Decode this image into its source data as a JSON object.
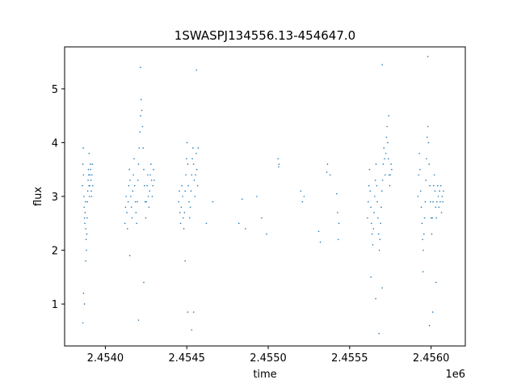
{
  "chart_data": {
    "type": "scatter",
    "title": "1SWASPJ134556.13-454647.0",
    "xlabel": "time",
    "ylabel": "flux",
    "x_offset_label": "1e6",
    "xlim": [
      2453750,
      2456210
    ],
    "ylim": [
      0.22,
      5.78
    ],
    "xticks": [
      2454000,
      2454500,
      2455000,
      2455500,
      2456000
    ],
    "xtick_labels": [
      "2.4540",
      "2.4545",
      "2.4550",
      "2.4555",
      "2.4560"
    ],
    "yticks": [
      1,
      2,
      3,
      4,
      5
    ],
    "ytick_labels": [
      "1",
      "2",
      "3",
      "4",
      "5"
    ],
    "grid": false,
    "marker_color": "#1f77b4",
    "series": [
      {
        "points": [
          [
            2453860,
            3.2
          ],
          [
            2453862,
            3.6
          ],
          [
            2453864,
            3.9
          ],
          [
            2453866,
            3.4
          ],
          [
            2453868,
            3.0
          ],
          [
            2453870,
            2.8
          ],
          [
            2453872,
            2.6
          ],
          [
            2453874,
            2.5
          ],
          [
            2453876,
            2.7
          ],
          [
            2453878,
            2.9
          ],
          [
            2453880,
            2.4
          ],
          [
            2453882,
            2.2
          ],
          [
            2453884,
            2.0
          ],
          [
            2453886,
            2.3
          ],
          [
            2453888,
            2.6
          ],
          [
            2453890,
            2.9
          ],
          [
            2453892,
            3.1
          ],
          [
            2453894,
            3.3
          ],
          [
            2453896,
            3.5
          ],
          [
            2453898,
            3.4
          ],
          [
            2453900,
            3.2
          ],
          [
            2453902,
            3.0
          ],
          [
            2453904,
            3.2
          ],
          [
            2453906,
            3.4
          ],
          [
            2453908,
            3.6
          ],
          [
            2453910,
            3.5
          ],
          [
            2453912,
            3.3
          ],
          [
            2453914,
            3.1
          ],
          [
            2453916,
            3.0
          ],
          [
            2453918,
            3.4
          ],
          [
            2453920,
            3.6
          ],
          [
            2453922,
            3.2
          ],
          [
            2453866,
            1.2
          ],
          [
            2453872,
            1.0
          ],
          [
            2453862,
            0.65
          ],
          [
            2453880,
            1.8
          ],
          [
            2453900,
            3.8
          ],
          [
            2454120,
            2.5
          ],
          [
            2454124,
            2.8
          ],
          [
            2454128,
            3.0
          ],
          [
            2454132,
            2.7
          ],
          [
            2454136,
            2.4
          ],
          [
            2454140,
            2.9
          ],
          [
            2454144,
            3.2
          ],
          [
            2454148,
            3.5
          ],
          [
            2454152,
            3.3
          ],
          [
            2454156,
            3.0
          ],
          [
            2454160,
            2.8
          ],
          [
            2454164,
            2.6
          ],
          [
            2454168,
            3.1
          ],
          [
            2454172,
            3.4
          ],
          [
            2454176,
            3.7
          ],
          [
            2454180,
            3.2
          ],
          [
            2454184,
            2.9
          ],
          [
            2454188,
            2.7
          ],
          [
            2454192,
            2.5
          ],
          [
            2454196,
            2.9
          ],
          [
            2454200,
            3.3
          ],
          [
            2454204,
            3.6
          ],
          [
            2454208,
            3.9
          ],
          [
            2454212,
            4.2
          ],
          [
            2454216,
            4.5
          ],
          [
            2454220,
            4.8
          ],
          [
            2454224,
            4.6
          ],
          [
            2454228,
            4.3
          ],
          [
            2454232,
            3.9
          ],
          [
            2454236,
            3.5
          ],
          [
            2454240,
            3.2
          ],
          [
            2454244,
            2.9
          ],
          [
            2454248,
            2.6
          ],
          [
            2454252,
            2.9
          ],
          [
            2454256,
            3.2
          ],
          [
            2454260,
            3.4
          ],
          [
            2454264,
            3.0
          ],
          [
            2454268,
            2.8
          ],
          [
            2454272,
            3.1
          ],
          [
            2454276,
            3.4
          ],
          [
            2454280,
            3.6
          ],
          [
            2454284,
            3.3
          ],
          [
            2454288,
            3.0
          ],
          [
            2454292,
            3.2
          ],
          [
            2454296,
            3.5
          ],
          [
            2454300,
            3.3
          ],
          [
            2454216,
            5.4
          ],
          [
            2454204,
            0.7
          ],
          [
            2454150,
            1.9
          ],
          [
            2454236,
            1.4
          ],
          [
            2454450,
            2.9
          ],
          [
            2454454,
            3.1
          ],
          [
            2454458,
            2.7
          ],
          [
            2454462,
            2.5
          ],
          [
            2454466,
            2.8
          ],
          [
            2454470,
            3.2
          ],
          [
            2454474,
            3.0
          ],
          [
            2454478,
            2.6
          ],
          [
            2454482,
            2.4
          ],
          [
            2454486,
            2.7
          ],
          [
            2454490,
            3.1
          ],
          [
            2454494,
            3.4
          ],
          [
            2454498,
            3.7
          ],
          [
            2454502,
            4.0
          ],
          [
            2454506,
            3.6
          ],
          [
            2454510,
            3.2
          ],
          [
            2454514,
            2.9
          ],
          [
            2454518,
            2.6
          ],
          [
            2454522,
            2.8
          ],
          [
            2454526,
            3.1
          ],
          [
            2454530,
            3.4
          ],
          [
            2454534,
            3.7
          ],
          [
            2454538,
            3.9
          ],
          [
            2454542,
            3.6
          ],
          [
            2454546,
            3.3
          ],
          [
            2454550,
            3.0
          ],
          [
            2454554,
            3.4
          ],
          [
            2454558,
            3.8
          ],
          [
            2454562,
            3.5
          ],
          [
            2454566,
            3.2
          ],
          [
            2454570,
            3.9
          ],
          [
            2454490,
            1.8
          ],
          [
            2454506,
            0.85
          ],
          [
            2454542,
            0.85
          ],
          [
            2454530,
            0.52
          ],
          [
            2454560,
            5.35
          ],
          [
            2454620,
            2.5
          ],
          [
            2454660,
            2.9
          ],
          [
            2454820,
            2.5
          ],
          [
            2454840,
            2.95
          ],
          [
            2454860,
            2.4
          ],
          [
            2454930,
            3.0
          ],
          [
            2454960,
            2.6
          ],
          [
            2454990,
            2.3
          ],
          [
            2455060,
            3.7
          ],
          [
            2455064,
            3.55
          ],
          [
            2455066,
            3.6
          ],
          [
            2455200,
            3.1
          ],
          [
            2455210,
            2.9
          ],
          [
            2455220,
            3.0
          ],
          [
            2455360,
            3.45
          ],
          [
            2455364,
            3.6
          ],
          [
            2455380,
            3.4
          ],
          [
            2455420,
            3.05
          ],
          [
            2455426,
            2.7
          ],
          [
            2455430,
            2.2
          ],
          [
            2455434,
            2.5
          ],
          [
            2455310,
            2.35
          ],
          [
            2455320,
            2.15
          ],
          [
            2455610,
            2.6
          ],
          [
            2455614,
            2.9
          ],
          [
            2455618,
            3.2
          ],
          [
            2455622,
            3.5
          ],
          [
            2455626,
            3.1
          ],
          [
            2455630,
            2.8
          ],
          [
            2455634,
            2.5
          ],
          [
            2455638,
            2.3
          ],
          [
            2455642,
            2.1
          ],
          [
            2455646,
            2.4
          ],
          [
            2455650,
            2.7
          ],
          [
            2455654,
            3.0
          ],
          [
            2455658,
            3.3
          ],
          [
            2455662,
            3.6
          ],
          [
            2455666,
            3.2
          ],
          [
            2455670,
            2.9
          ],
          [
            2455674,
            2.6
          ],
          [
            2455678,
            2.3
          ],
          [
            2455682,
            2.0
          ],
          [
            2455686,
            2.2
          ],
          [
            2455690,
            2.5
          ],
          [
            2455694,
            2.8
          ],
          [
            2455698,
            3.1
          ],
          [
            2455702,
            3.3
          ],
          [
            2455706,
            3.6
          ],
          [
            2455710,
            3.9
          ],
          [
            2455714,
            3.7
          ],
          [
            2455718,
            3.4
          ],
          [
            2455722,
            3.8
          ],
          [
            2455726,
            4.1
          ],
          [
            2455730,
            4.3
          ],
          [
            2455734,
            4.0
          ],
          [
            2455738,
            3.7
          ],
          [
            2455742,
            3.4
          ],
          [
            2455746,
            3.2
          ],
          [
            2455750,
            3.4
          ],
          [
            2455754,
            3.6
          ],
          [
            2455758,
            3.5
          ],
          [
            2455660,
            1.1
          ],
          [
            2455680,
            0.45
          ],
          [
            2455700,
            5.45
          ],
          [
            2455740,
            4.5
          ],
          [
            2455630,
            1.5
          ],
          [
            2455700,
            1.3
          ],
          [
            2455920,
            3.0
          ],
          [
            2455924,
            3.4
          ],
          [
            2455928,
            3.8
          ],
          [
            2455932,
            3.5
          ],
          [
            2455936,
            3.1
          ],
          [
            2455940,
            2.8
          ],
          [
            2455944,
            2.5
          ],
          [
            2455948,
            2.2
          ],
          [
            2455952,
            2.0
          ],
          [
            2455956,
            2.3
          ],
          [
            2455960,
            2.6
          ],
          [
            2455964,
            2.9
          ],
          [
            2455968,
            3.3
          ],
          [
            2455972,
            3.7
          ],
          [
            2455976,
            4.1
          ],
          [
            2455980,
            4.3
          ],
          [
            2455984,
            4.0
          ],
          [
            2455988,
            3.6
          ],
          [
            2455992,
            3.2
          ],
          [
            2455996,
            2.9
          ],
          [
            2456000,
            2.6
          ],
          [
            2456004,
            2.3
          ],
          [
            2456008,
            2.6
          ],
          [
            2456012,
            2.9
          ],
          [
            2456016,
            3.2
          ],
          [
            2456020,
            3.4
          ],
          [
            2456024,
            3.1
          ],
          [
            2456028,
            2.8
          ],
          [
            2456032,
            2.6
          ],
          [
            2456036,
            2.9
          ],
          [
            2456040,
            3.2
          ],
          [
            2456044,
            3.0
          ],
          [
            2456048,
            2.8
          ],
          [
            2456052,
            3.1
          ],
          [
            2456056,
            2.9
          ],
          [
            2456060,
            3.2
          ],
          [
            2456064,
            2.7
          ],
          [
            2456068,
            3.0
          ],
          [
            2456072,
            2.9
          ],
          [
            2456076,
            3.1
          ],
          [
            2455980,
            5.6
          ],
          [
            2455990,
            0.6
          ],
          [
            2456010,
            0.85
          ],
          [
            2456030,
            1.4
          ],
          [
            2455950,
            1.6
          ]
        ]
      }
    ]
  }
}
